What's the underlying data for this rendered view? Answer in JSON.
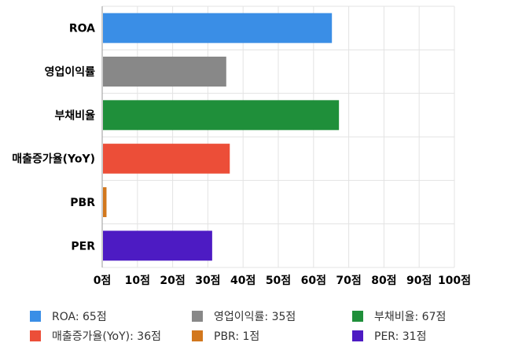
{
  "chart_data": {
    "type": "bar",
    "orientation": "horizontal",
    "categories": [
      "ROA",
      "영업이익률",
      "부채비율",
      "매출증가율(YoY)",
      "PBR",
      "PER"
    ],
    "values": [
      65,
      35,
      67,
      36,
      1,
      31
    ],
    "colors": [
      "#3a8ee6",
      "#888888",
      "#1f8f3a",
      "#ec4e38",
      "#d2771d",
      "#4d1bc3"
    ],
    "xlim": [
      0,
      100
    ],
    "x_ticks": [
      0,
      10,
      20,
      30,
      40,
      50,
      60,
      70,
      80,
      90,
      100
    ],
    "tick_suffix": "점",
    "grid": true,
    "legend_position": "bottom"
  },
  "legend": [
    {
      "label": "ROA: 65점",
      "color": "#3a8ee6"
    },
    {
      "label": "영업이익률: 35점",
      "color": "#888888"
    },
    {
      "label": "부채비율: 67점",
      "color": "#1f8f3a"
    },
    {
      "label": "매출증가율(YoY): 36점",
      "color": "#ec4e38"
    },
    {
      "label": "PBR: 1점",
      "color": "#d2771d"
    },
    {
      "label": "PER: 31점",
      "color": "#4d1bc3"
    }
  ]
}
